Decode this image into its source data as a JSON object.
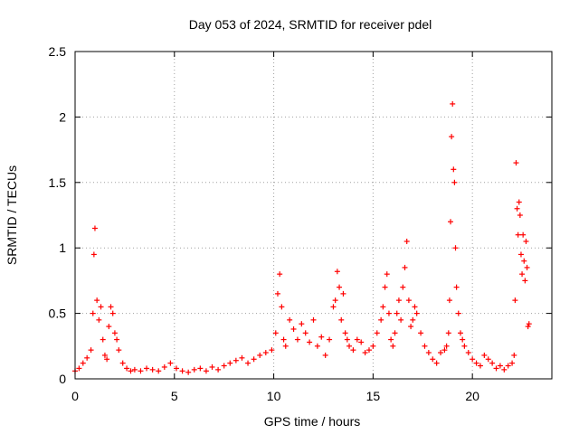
{
  "chart_data": {
    "type": "scatter",
    "title": "Day 053 of 2024, SRMTID for receiver pdel",
    "xlabel": "GPS time / hours",
    "ylabel": "SRMTID / TECUs",
    "xlim": [
      0,
      24
    ],
    "ylim": [
      0,
      2.5
    ],
    "xticks": [
      0,
      5,
      10,
      15,
      20
    ],
    "xtick_labels": [
      "0",
      "5",
      "10",
      "15",
      "20"
    ],
    "yticks": [
      0,
      0.5,
      1,
      1.5,
      2,
      2.5
    ],
    "ytick_labels": [
      "0",
      "0.5",
      "1",
      "1.5",
      "2",
      "2.5"
    ],
    "grid": true,
    "marker": "+",
    "color": "#ff0000",
    "series": [
      {
        "name": "SRMTID",
        "x": [
          0.0,
          0.2,
          0.4,
          0.6,
          0.8,
          0.9,
          0.95,
          1.0,
          1.1,
          1.2,
          1.3,
          1.4,
          1.5,
          1.6,
          1.7,
          1.8,
          1.9,
          2.0,
          2.1,
          2.2,
          2.4,
          2.6,
          2.8,
          3.0,
          3.3,
          3.6,
          3.9,
          4.2,
          4.5,
          4.8,
          5.1,
          5.4,
          5.7,
          6.0,
          6.3,
          6.6,
          6.9,
          7.2,
          7.5,
          7.8,
          8.1,
          8.4,
          8.7,
          9.0,
          9.3,
          9.6,
          9.9,
          10.1,
          10.2,
          10.3,
          10.4,
          10.5,
          10.6,
          10.8,
          11.0,
          11.2,
          11.4,
          11.6,
          11.8,
          12.0,
          12.2,
          12.4,
          12.6,
          12.8,
          13.0,
          13.1,
          13.2,
          13.3,
          13.4,
          13.5,
          13.6,
          13.7,
          13.8,
          14.0,
          14.2,
          14.4,
          14.6,
          14.8,
          15.0,
          15.2,
          15.4,
          15.5,
          15.6,
          15.7,
          15.8,
          15.9,
          16.0,
          16.1,
          16.2,
          16.3,
          16.4,
          16.5,
          16.6,
          16.7,
          16.8,
          16.9,
          17.0,
          17.1,
          17.2,
          17.4,
          17.6,
          17.8,
          18.0,
          18.2,
          18.4,
          18.6,
          18.7,
          18.8,
          18.85,
          18.9,
          18.95,
          19.0,
          19.05,
          19.1,
          19.15,
          19.2,
          19.3,
          19.4,
          19.5,
          19.6,
          19.8,
          20.0,
          20.2,
          20.4,
          20.6,
          20.8,
          21.0,
          21.2,
          21.4,
          21.6,
          21.8,
          22.0,
          22.1,
          22.15,
          22.2,
          22.25,
          22.3,
          22.35,
          22.4,
          22.45,
          22.5,
          22.55,
          22.6,
          22.65,
          22.7,
          22.75,
          22.8,
          22.85
        ],
        "values": [
          0.06,
          0.08,
          0.12,
          0.16,
          0.22,
          0.5,
          0.95,
          1.15,
          0.6,
          0.45,
          0.55,
          0.3,
          0.18,
          0.15,
          0.4,
          0.55,
          0.5,
          0.35,
          0.3,
          0.22,
          0.12,
          0.08,
          0.06,
          0.07,
          0.06,
          0.08,
          0.07,
          0.06,
          0.09,
          0.12,
          0.08,
          0.06,
          0.05,
          0.07,
          0.08,
          0.06,
          0.09,
          0.07,
          0.1,
          0.12,
          0.14,
          0.16,
          0.12,
          0.15,
          0.18,
          0.2,
          0.22,
          0.35,
          0.65,
          0.8,
          0.55,
          0.3,
          0.25,
          0.45,
          0.38,
          0.3,
          0.42,
          0.35,
          0.28,
          0.45,
          0.25,
          0.32,
          0.18,
          0.3,
          0.55,
          0.6,
          0.82,
          0.7,
          0.45,
          0.65,
          0.35,
          0.3,
          0.25,
          0.22,
          0.3,
          0.28,
          0.2,
          0.22,
          0.25,
          0.35,
          0.45,
          0.55,
          0.7,
          0.8,
          0.5,
          0.3,
          0.25,
          0.35,
          0.5,
          0.6,
          0.45,
          0.7,
          0.85,
          1.05,
          0.6,
          0.4,
          0.45,
          0.55,
          0.5,
          0.35,
          0.25,
          0.2,
          0.15,
          0.12,
          0.2,
          0.22,
          0.25,
          0.35,
          0.6,
          1.2,
          1.85,
          2.1,
          1.6,
          1.5,
          1.0,
          0.7,
          0.5,
          0.35,
          0.3,
          0.25,
          0.2,
          0.15,
          0.12,
          0.1,
          0.18,
          0.15,
          0.12,
          0.08,
          0.1,
          0.07,
          0.1,
          0.12,
          0.18,
          0.6,
          1.65,
          1.3,
          1.1,
          1.35,
          1.25,
          0.95,
          0.8,
          1.1,
          0.9,
          0.75,
          1.05,
          0.85,
          0.4,
          0.42
        ]
      }
    ]
  }
}
